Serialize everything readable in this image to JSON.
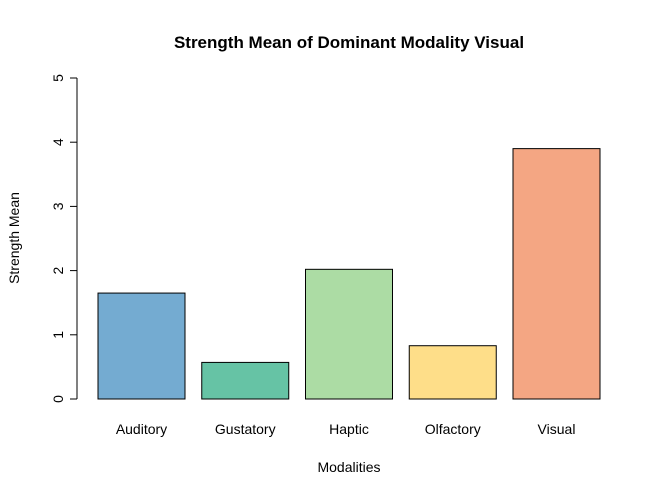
{
  "chart_data": {
    "type": "bar",
    "title": "Strength Mean of Dominant Modality Visual",
    "xlabel": "Modalities",
    "ylabel": "Strength Mean",
    "categories": [
      "Auditory",
      "Gustatory",
      "Haptic",
      "Olfactory",
      "Visual"
    ],
    "values": [
      1.65,
      0.57,
      2.02,
      0.83,
      3.9
    ],
    "colors": [
      "#74ABD1",
      "#66C3A5",
      "#ACDCA4",
      "#FEDE89",
      "#F4A683"
    ],
    "ylim": [
      0,
      5
    ],
    "yticks": [
      "0",
      "1",
      "2",
      "3",
      "4",
      "5"
    ],
    "grid": false,
    "legend": "none"
  }
}
